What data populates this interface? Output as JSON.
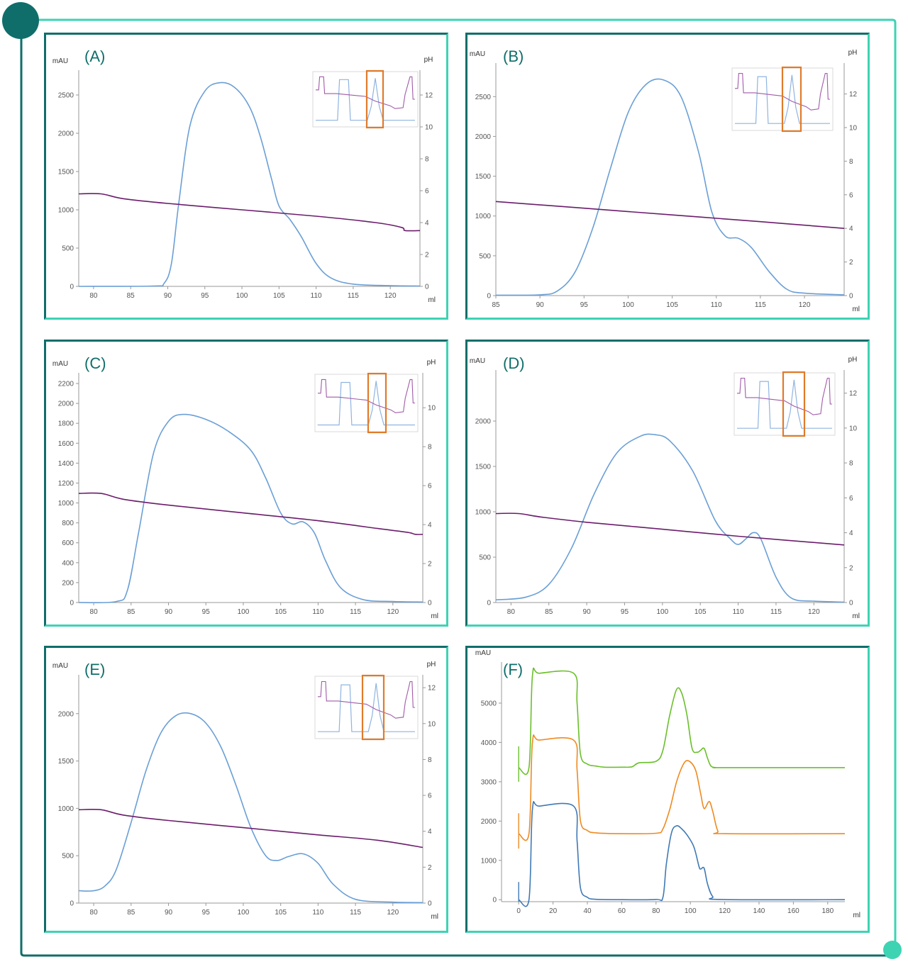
{
  "colors": {
    "frame_dark": "#0f6e6a",
    "frame_light": "#3ed3b3",
    "uv_blue": "#6a9fd6",
    "ph_purple": "#6b1d6b",
    "highlight": "#e07b2a",
    "green": "#6abf2a",
    "orange": "#ee8a20",
    "blue": "#3f79b5"
  },
  "chart_data": [
    {
      "panel": "(A)",
      "type": "line",
      "ylabel": "mAU",
      "y2label": "pH",
      "xlabel": "ml",
      "xlim": [
        78,
        124
      ],
      "ylim": [
        0,
        2750
      ],
      "y2lim": [
        0,
        13.2
      ],
      "xticks": [
        80,
        85,
        90,
        95,
        100,
        105,
        110,
        115,
        120
      ],
      "yticks": [
        0,
        500,
        1000,
        1500,
        2000,
        2500
      ],
      "y2ticks": [
        0,
        2,
        4,
        6,
        8,
        10,
        12
      ],
      "series": [
        {
          "axis": "left",
          "x": [
            78,
            88,
            89.5,
            90.5,
            91.5,
            93,
            95,
            97,
            99,
            101,
            102.5,
            104,
            105,
            106.5,
            108,
            110,
            112,
            115,
            120,
            124
          ],
          "y": [
            0,
            5,
            40,
            300,
            1100,
            2100,
            2550,
            2660,
            2600,
            2350,
            1950,
            1400,
            1050,
            870,
            650,
            300,
            110,
            30,
            10,
            5
          ]
        },
        {
          "axis": "right",
          "x": [
            78,
            81,
            84,
            90,
            100,
            110,
            118,
            121.5,
            122,
            124
          ],
          "y": [
            5.8,
            5.8,
            5.5,
            5.2,
            4.8,
            4.4,
            4.0,
            3.7,
            3.5,
            3.5
          ]
        }
      ]
    },
    {
      "panel": "(B)",
      "type": "line",
      "ylabel": "mAU",
      "y2label": "pH",
      "xlabel": "ml",
      "xlim": [
        85,
        124.5
      ],
      "ylim": [
        0,
        2850
      ],
      "y2lim": [
        0,
        13.5
      ],
      "xticks": [
        85,
        90,
        95,
        100,
        105,
        110,
        115,
        120
      ],
      "yticks": [
        0,
        500,
        1000,
        1500,
        2000,
        2500
      ],
      "y2ticks": [
        0,
        2,
        4,
        6,
        8,
        10,
        12
      ],
      "series": [
        {
          "axis": "left",
          "x": [
            85,
            90,
            92,
            94,
            96,
            98,
            100,
            102,
            104,
            106,
            108,
            109.5,
            111,
            112.5,
            114,
            116,
            118,
            120,
            124.5
          ],
          "y": [
            5,
            10,
            60,
            300,
            850,
            1600,
            2300,
            2650,
            2710,
            2500,
            1800,
            1050,
            750,
            720,
            600,
            300,
            80,
            30,
            10
          ]
        },
        {
          "axis": "right",
          "x": [
            85,
            95,
            105,
            115,
            124.5
          ],
          "y": [
            5.6,
            5.2,
            4.8,
            4.4,
            4.0
          ]
        }
      ]
    },
    {
      "panel": "(C)",
      "type": "line",
      "ylabel": "mAU",
      "y2label": "pH",
      "xlabel": "ml",
      "xlim": [
        78,
        124
      ],
      "ylim": [
        0,
        2250
      ],
      "y2lim": [
        0,
        11.5
      ],
      "xticks": [
        80,
        85,
        90,
        95,
        100,
        105,
        110,
        115,
        120
      ],
      "yticks": [
        0,
        200,
        400,
        600,
        800,
        1000,
        1200,
        1400,
        1600,
        1800,
        2000,
        2200
      ],
      "y2ticks": [
        0,
        2,
        4,
        6,
        8,
        10
      ],
      "series": [
        {
          "axis": "left",
          "x": [
            78,
            83,
            84.5,
            86,
            88,
            90,
            92,
            95,
            98,
            101,
            103,
            105,
            106.5,
            108,
            109.5,
            111,
            113,
            116,
            120,
            124
          ],
          "y": [
            0,
            10,
            120,
            700,
            1500,
            1820,
            1890,
            1840,
            1720,
            1530,
            1250,
            900,
            790,
            810,
            700,
            420,
            150,
            30,
            10,
            5
          ]
        },
        {
          "axis": "right",
          "x": [
            78,
            81,
            84,
            90,
            100,
            110,
            118,
            122,
            123,
            124
          ],
          "y": [
            5.6,
            5.6,
            5.3,
            5.0,
            4.6,
            4.2,
            3.8,
            3.6,
            3.5,
            3.5
          ]
        }
      ]
    },
    {
      "panel": "(D)",
      "type": "line",
      "ylabel": "mAU",
      "y2label": "pH",
      "xlabel": "ml",
      "xlim": [
        78,
        124
      ],
      "ylim": [
        0,
        2500
      ],
      "y2lim": [
        0,
        13.0
      ],
      "xticks": [
        80,
        85,
        90,
        95,
        100,
        105,
        110,
        115,
        120
      ],
      "yticks": [
        0,
        500,
        1000,
        1500,
        2000
      ],
      "y2ticks": [
        0,
        2,
        4,
        6,
        8,
        10,
        12
      ],
      "series": [
        {
          "axis": "left",
          "x": [
            78,
            82,
            85,
            88,
            91,
            94,
            97,
            99,
            101,
            104,
            107,
            109,
            110,
            111,
            112,
            113,
            115,
            117,
            120,
            124
          ],
          "y": [
            30,
            60,
            200,
            600,
            1200,
            1650,
            1830,
            1850,
            1780,
            1450,
            900,
            700,
            640,
            700,
            770,
            700,
            280,
            50,
            15,
            5
          ]
        },
        {
          "axis": "right",
          "x": [
            78,
            81,
            84,
            90,
            100,
            110,
            124
          ],
          "y": [
            5.1,
            5.1,
            4.9,
            4.6,
            4.2,
            3.8,
            3.3
          ]
        }
      ]
    },
    {
      "panel": "(E)",
      "type": "line",
      "ylabel": "mAU",
      "y2label": "pH",
      "xlabel": "ml",
      "xlim": [
        78,
        124
      ],
      "ylim": [
        0,
        2350
      ],
      "y2lim": [
        0,
        12.4
      ],
      "xticks": [
        80,
        85,
        90,
        95,
        100,
        105,
        110,
        115,
        120
      ],
      "yticks": [
        0,
        500,
        1000,
        1500,
        2000
      ],
      "y2ticks": [
        0,
        2,
        4,
        6,
        8,
        10,
        12
      ],
      "series": [
        {
          "axis": "left",
          "x": [
            78,
            80,
            81.5,
            83,
            85,
            87,
            89,
            91,
            93,
            95,
            97,
            99,
            101,
            103,
            104.5,
            106,
            108,
            110,
            112,
            115,
            120,
            124
          ],
          "y": [
            130,
            130,
            180,
            350,
            850,
            1400,
            1800,
            1980,
            2000,
            1900,
            1650,
            1250,
            800,
            500,
            450,
            490,
            520,
            420,
            200,
            40,
            10,
            5
          ]
        },
        {
          "axis": "right",
          "x": [
            78,
            81,
            84,
            90,
            100,
            110,
            118,
            124
          ],
          "y": [
            5.2,
            5.2,
            4.9,
            4.6,
            4.2,
            3.8,
            3.5,
            3.1
          ]
        }
      ]
    },
    {
      "panel": "(F)",
      "type": "line",
      "ylabel": "mAU",
      "xlabel": "ml",
      "xlim": [
        -10,
        190
      ],
      "ylim": [
        -50,
        5900
      ],
      "xticks": [
        0,
        20,
        40,
        60,
        80,
        100,
        120,
        140,
        160,
        180
      ],
      "yticks": [
        0,
        1000,
        2000,
        3000,
        4000,
        5000
      ],
      "series": [
        {
          "color": "green",
          "x": [
            0,
            6,
            8,
            12,
            32,
            34,
            36,
            40,
            45,
            50,
            60,
            66,
            70,
            80,
            84,
            88,
            92,
            95,
            98,
            101,
            104,
            106,
            108,
            110,
            112,
            115,
            120,
            190
          ],
          "y": [
            3360,
            3360,
            5700,
            5760,
            5760,
            5000,
            3700,
            3450,
            3400,
            3370,
            3370,
            3380,
            3480,
            3520,
            3800,
            4700,
            5350,
            5250,
            4700,
            3850,
            3750,
            3800,
            3850,
            3600,
            3400,
            3360,
            3360,
            3360
          ]
        },
        {
          "color": "orange",
          "x": [
            0,
            6,
            8,
            12,
            32,
            34,
            36,
            40,
            45,
            60,
            80,
            84,
            88,
            92,
            96,
            99,
            103,
            106,
            108,
            111,
            113,
            116,
            120,
            190
          ],
          "y": [
            1680,
            1680,
            4000,
            4060,
            4060,
            3300,
            2000,
            1760,
            1700,
            1680,
            1690,
            1800,
            2300,
            3000,
            3450,
            3530,
            3300,
            2700,
            2320,
            2500,
            2250,
            1750,
            1680,
            1680
          ]
        },
        {
          "color": "blue",
          "x": [
            0,
            6,
            8,
            12,
            32,
            34,
            36,
            40,
            45,
            60,
            80,
            84,
            86,
            89,
            92,
            95,
            98,
            102,
            105,
            106,
            108,
            110,
            113,
            118,
            190
          ],
          "y": [
            0,
            0,
            2300,
            2380,
            2380,
            1500,
            300,
            60,
            10,
            0,
            5,
            60,
            900,
            1700,
            1880,
            1800,
            1650,
            1350,
            850,
            780,
            800,
            400,
            80,
            5,
            0
          ]
        }
      ],
      "injection_markers": [
        {
          "series": "green",
          "x": 0,
          "y0": 3000,
          "y1": 3900
        },
        {
          "series": "orange",
          "x": 0,
          "y0": 1300,
          "y1": 2200
        },
        {
          "series": "blue",
          "x": 0,
          "y0": -50,
          "y1": 450
        }
      ]
    }
  ]
}
